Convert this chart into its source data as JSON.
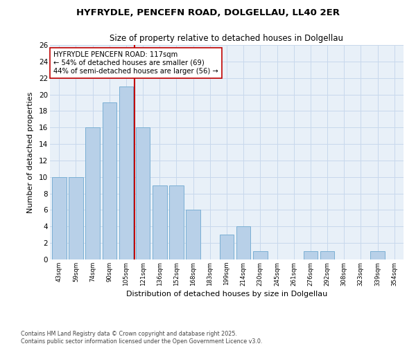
{
  "title": "HYFRYDLE, PENCEFN ROAD, DOLGELLAU, LL40 2ER",
  "subtitle": "Size of property relative to detached houses in Dolgellau",
  "xlabel": "Distribution of detached houses by size in Dolgellau",
  "ylabel": "Number of detached properties",
  "bins": [
    "43sqm",
    "59sqm",
    "74sqm",
    "90sqm",
    "105sqm",
    "121sqm",
    "136sqm",
    "152sqm",
    "168sqm",
    "183sqm",
    "199sqm",
    "214sqm",
    "230sqm",
    "245sqm",
    "261sqm",
    "276sqm",
    "292sqm",
    "308sqm",
    "323sqm",
    "339sqm",
    "354sqm"
  ],
  "counts": [
    10,
    10,
    16,
    19,
    21,
    16,
    9,
    9,
    6,
    0,
    3,
    4,
    1,
    0,
    0,
    1,
    1,
    0,
    0,
    1,
    0
  ],
  "bar_color": "#b8d0e8",
  "bar_edge_color": "#7aafd4",
  "vline_color": "#c00000",
  "annotation_text": "HYFRYDLE PENCEFN ROAD: 117sqm\n← 54% of detached houses are smaller (69)\n44% of semi-detached houses are larger (56) →",
  "annotation_fontsize": 7.2,
  "grid_color": "#c8d8ec",
  "ylim": [
    0,
    26
  ],
  "yticks": [
    0,
    2,
    4,
    6,
    8,
    10,
    12,
    14,
    16,
    18,
    20,
    22,
    24,
    26
  ],
  "footer1": "Contains HM Land Registry data © Crown copyright and database right 2025.",
  "footer2": "Contains public sector information licensed under the Open Government Licence v3.0.",
  "bg_color": "#e8f0f8",
  "vline_x": 4.5
}
